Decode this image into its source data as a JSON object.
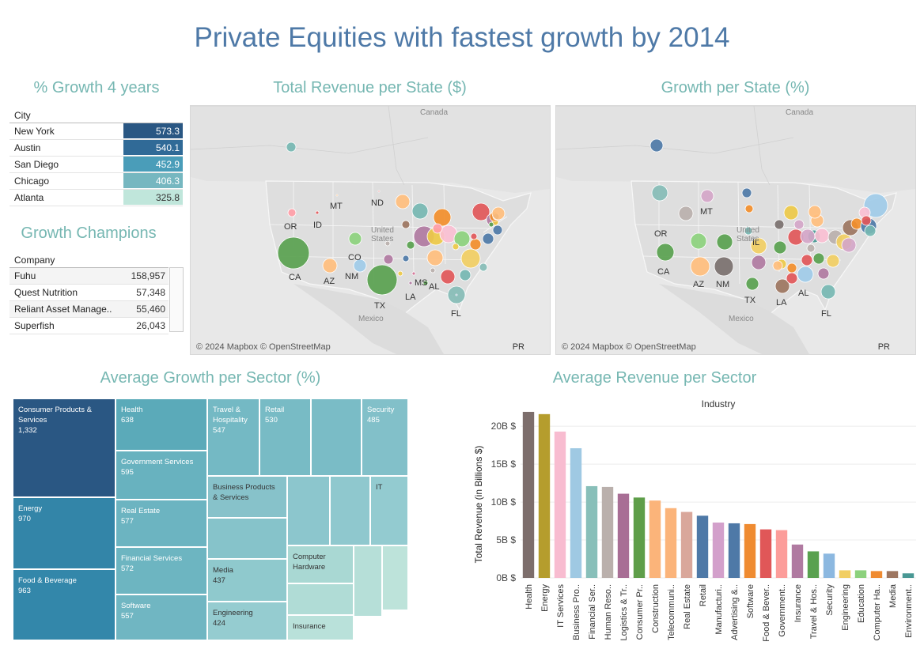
{
  "title": "Private Equities with fastest growth by 2014",
  "growth_city": {
    "title": "% Growth 4 years",
    "header": "City",
    "rows": [
      {
        "city": "New York",
        "value": "573.3",
        "color": "#2a5783"
      },
      {
        "city": "Austin",
        "value": "540.1",
        "color": "#306a97"
      },
      {
        "city": "San Diego",
        "value": "452.9",
        "color": "#4a9db9"
      },
      {
        "city": "Chicago",
        "value": "406.3",
        "color": "#76b7c0"
      },
      {
        "city": "Atlanta",
        "value": "325.8",
        "color": "#c0e6db"
      }
    ]
  },
  "champions": {
    "title": "Growth Champions",
    "header": "Company",
    "rows": [
      {
        "company": "Fuhu",
        "value": "158,957"
      },
      {
        "company": "Quest Nutrition",
        "value": "57,348"
      },
      {
        "company": "Reliant Asset Manage..",
        "value": "55,460"
      },
      {
        "company": "Superfish",
        "value": "26,043"
      }
    ]
  },
  "map1": {
    "title": "Total Revenue per State ($)",
    "credit": "© 2024 Mapbox © OpenStreetMap",
    "labels": {
      "canada": "Canada",
      "us": "United States",
      "mexico": "Mexico",
      "pr": "PR"
    },
    "states": [
      "OR",
      "ID",
      "MT",
      "ND",
      "CA",
      "AZ",
      "CO",
      "NM",
      "TX",
      "LA",
      "MS",
      "AL",
      "FL"
    ]
  },
  "map2": {
    "title": "Growth per State (%)",
    "credit": "© 2024 Mapbox © OpenStreetMap",
    "labels": {
      "canada": "Canada",
      "us": "United States",
      "mexico": "Mexico",
      "pr": "PR"
    },
    "states": [
      "OR",
      "MT",
      "IL",
      "CA",
      "AZ",
      "NM",
      "TX",
      "LA",
      "AL",
      "FL"
    ]
  },
  "treemap": {
    "title": "Average Growth per Sector (%)",
    "cells": [
      {
        "name": "Consumer Products & Services",
        "value": "1,332",
        "color": "#2a5783"
      },
      {
        "name": "Energy",
        "value": "970",
        "color": "#3385a8"
      },
      {
        "name": "Food & Beverage",
        "value": "963",
        "color": "#3387aa"
      },
      {
        "name": "Health",
        "value": "638",
        "color": "#5baab9"
      },
      {
        "name": "Government Services",
        "value": "595",
        "color": "#68b2bf"
      },
      {
        "name": "Real Estate",
        "value": "577",
        "color": "#6cb4c1"
      },
      {
        "name": "Financial Services",
        "value": "572",
        "color": "#6db5c1"
      },
      {
        "name": "Software",
        "value": "557",
        "color": "#70b6c2"
      },
      {
        "name": "Travel & Hospitality",
        "value": "547",
        "color": "#74b9c4"
      },
      {
        "name": "Retail",
        "value": "530",
        "color": "#78bbc5"
      },
      {
        "name": "",
        "value": "",
        "color": "#7abcc6"
      },
      {
        "name": "Security",
        "value": "485",
        "color": "#82c0c9"
      },
      {
        "name": "Business Products & Services",
        "value": "",
        "color": "#87c2ca"
      },
      {
        "name": "",
        "value": "",
        "color": "#8cc6cd"
      },
      {
        "name": "",
        "value": "",
        "color": "#8fc8ce"
      },
      {
        "name": "IT",
        "value": "",
        "color": "#93cbd0"
      },
      {
        "name": "",
        "value": "",
        "color": "#86c3ca"
      },
      {
        "name": "Media",
        "value": "437",
        "color": "#8fc9cd"
      },
      {
        "name": "Computer Hardware",
        "value": "",
        "color": "#a9d8d3"
      },
      {
        "name": "",
        "value": "",
        "color": "#b0dcd6"
      },
      {
        "name": "",
        "value": "",
        "color": "#b6dfd8"
      },
      {
        "name": "",
        "value": "",
        "color": "#bde3da"
      },
      {
        "name": "Engineering",
        "value": "424",
        "color": "#95ccd0"
      },
      {
        "name": "Insurance",
        "value": "",
        "color": "#b9e1da"
      }
    ]
  },
  "chart_data": {
    "type": "bar",
    "title": "Average Revenue per Sector",
    "subtitle": "Industry",
    "ylabel": "Total Revenue (in Billions $)",
    "ylim": [
      0,
      22
    ],
    "yticks": [
      0,
      5,
      10,
      15,
      20
    ],
    "ytick_labels": [
      "0B $",
      "5B $",
      "10B $",
      "15B $",
      "20B $"
    ],
    "categories": [
      "Health",
      "Energy",
      "IT Services",
      "Business Pro..",
      "Financial Ser..",
      "Human Reso..",
      "Logistics & Tr..",
      "Consumer Pr..",
      "Construction",
      "Telecommuni..",
      "Real Estate",
      "Retail",
      "Manufacturi..",
      "Advertising &..",
      "Software",
      "Food & Bever..",
      "Government..",
      "Insurance",
      "Travel & Hos..",
      "Security",
      "Engineering",
      "Education",
      "Computer Ha..",
      "Media",
      "Environment.."
    ],
    "values": [
      21.9,
      21.6,
      19.3,
      17.1,
      12.1,
      12.0,
      11.1,
      10.6,
      10.2,
      9.2,
      8.7,
      8.2,
      7.3,
      7.2,
      7.1,
      6.4,
      6.3,
      4.4,
      3.5,
      3.2,
      1.0,
      1.0,
      0.9,
      0.9,
      0.6
    ],
    "colors": [
      "#7d6e6c",
      "#b59d2d",
      "#f8bcd0",
      "#9fc9e3",
      "#88bfb9",
      "#bab0ac",
      "#a86e95",
      "#5e9e49",
      "#fbb47a",
      "#fbb47a",
      "#d9a79b",
      "#4e79a7",
      "#d3a0cb",
      "#4e79a7",
      "#ef8b31",
      "#e05758",
      "#fc9d9a",
      "#b07aa1",
      "#59a14f",
      "#8cb8e0",
      "#f1ce63",
      "#8cd17d",
      "#ef8b31",
      "#9d7660",
      "#499894"
    ]
  }
}
